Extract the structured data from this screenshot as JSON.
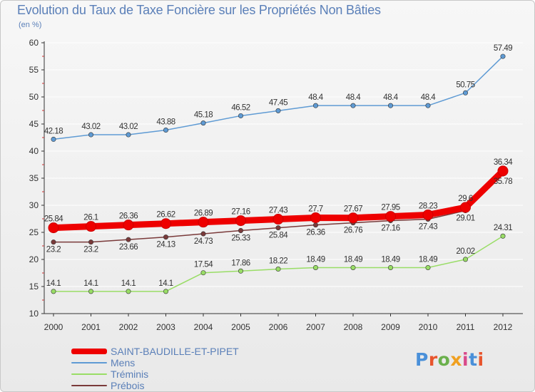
{
  "title": "Evolution du Taux de Taxe Foncière sur les Propriétés Non Bâties",
  "subtitle": "(en %)",
  "logo": {
    "text": "Proxiti",
    "colors": [
      "#4a90d9",
      "#e8552d",
      "#6ab04c",
      "#f0a020",
      "#d94a8a",
      "#4a90d9",
      "#e8552d"
    ]
  },
  "chart_data": {
    "type": "line",
    "title": "Evolution du Taux de Taxe Foncière sur les Propriétés Non Bâties",
    "ylabel": "(en %)",
    "ylim": [
      10,
      60
    ],
    "yticks": [
      10,
      15,
      20,
      25,
      30,
      35,
      40,
      45,
      50,
      55,
      60
    ],
    "x": [
      "2000",
      "2001",
      "2002",
      "2003",
      "2004",
      "2005",
      "2006",
      "2007",
      "2008",
      "2009",
      "2010",
      "2011",
      "2012"
    ],
    "series": [
      {
        "name": "SAINT-BAUDILLE-ET-PIPET",
        "color": "#ee0000",
        "labelColor": "#333333",
        "values": [
          25.84,
          26.1,
          26.36,
          26.62,
          26.89,
          27.16,
          27.43,
          27.7,
          27.67,
          27.95,
          28.23,
          29.6,
          36.34
        ],
        "labels": [
          "25.84",
          "26.1",
          "26.36",
          "26.62",
          "26.89",
          "27.16",
          "27.43",
          "27.7",
          "27.67",
          "27.95",
          "28.23",
          "29.6",
          "36.34"
        ]
      },
      {
        "name": "Mens",
        "color": "#5f9bd4",
        "labelColor": "#333333",
        "values": [
          42.18,
          43.02,
          43.02,
          43.88,
          45.18,
          46.52,
          47.45,
          48.4,
          48.4,
          48.4,
          48.4,
          50.75,
          57.49
        ],
        "labels": [
          "42.18",
          "43.02",
          "43.02",
          "43.88",
          "45.18",
          "46.52",
          "47.45",
          "48.4",
          "48.4",
          "48.4",
          "48.4",
          "50.75",
          "57.49"
        ]
      },
      {
        "name": "Tréminis",
        "color": "#99dd66",
        "labelColor": "#333333",
        "values": [
          14.1,
          14.1,
          14.1,
          14.1,
          17.54,
          17.86,
          18.22,
          18.49,
          18.49,
          18.49,
          18.49,
          20.02,
          24.31
        ],
        "labels": [
          "14.1",
          "14.1",
          "14.1",
          "14.1",
          "17.54",
          "17.86",
          "18.22",
          "18.49",
          "18.49",
          "18.49",
          "18.49",
          "20.02",
          "24.31"
        ]
      },
      {
        "name": "Prébois",
        "color": "#7a3a3a",
        "labelColor": "#333333",
        "values": [
          23.2,
          23.2,
          23.66,
          24.13,
          24.73,
          25.33,
          25.84,
          26.36,
          26.76,
          27.16,
          27.43,
          29.01,
          35.78
        ],
        "labels": [
          "23.2",
          "23.2",
          "23.66",
          "24.13",
          "24.73",
          "25.33",
          "25.84",
          "26.36",
          "26.76",
          "27.16",
          "27.43",
          "29.01",
          "35.78"
        ]
      }
    ],
    "legend": "bottom-left"
  }
}
